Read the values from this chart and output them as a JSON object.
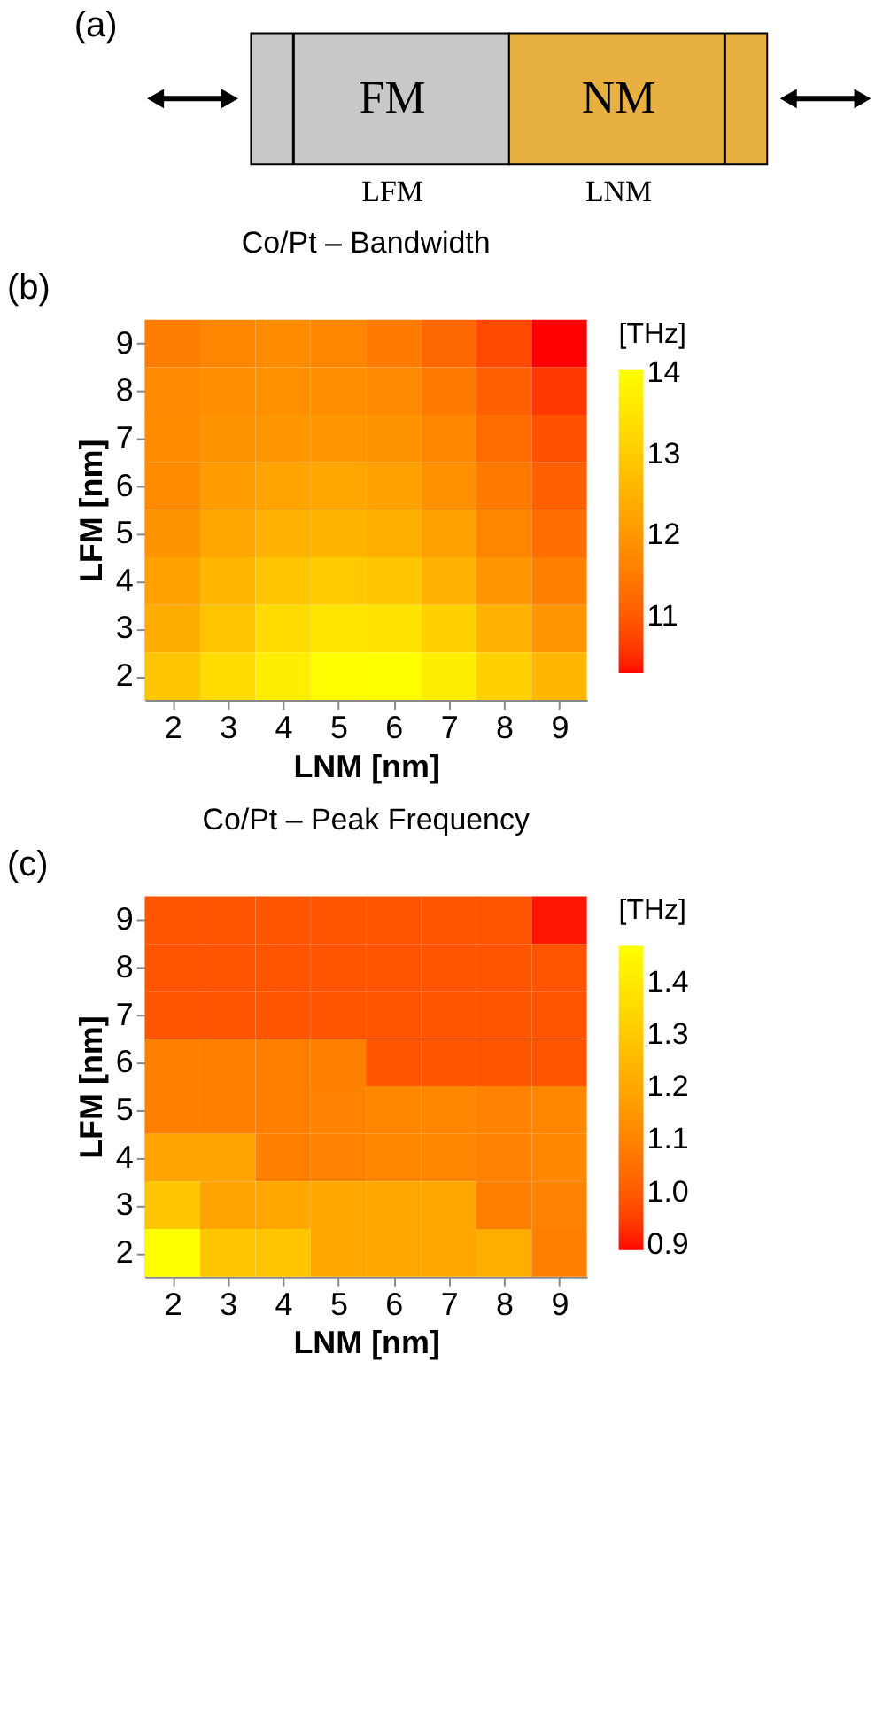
{
  "chart_data": [
    {
      "type": "other",
      "annotations": [
        "(a)",
        "FM",
        "NM",
        "LFM",
        "LNM"
      ]
    },
    {
      "type": "heatmap",
      "title": "Co/Pt – Bandwidth",
      "xlabel": "LNM [nm]",
      "ylabel": "LFM [nm]",
      "clabel": "[THz]",
      "annotations": [
        "(b)"
      ],
      "categories": [
        "2",
        "3",
        "4",
        "5",
        "6",
        "7",
        "8",
        "9"
      ],
      "y_categories": [
        "9",
        "8",
        "7",
        "6",
        "5",
        "4",
        "3",
        "2"
      ],
      "cells": [
        [
          11.55,
          11.7,
          11.8,
          11.7,
          11.5,
          11.2,
          10.8,
          10.3
        ],
        [
          11.75,
          11.85,
          11.9,
          11.85,
          11.75,
          11.5,
          11.1,
          10.6
        ],
        [
          11.8,
          11.95,
          12.0,
          12.0,
          11.95,
          11.7,
          11.3,
          10.9
        ],
        [
          11.8,
          12.1,
          12.25,
          12.3,
          12.2,
          11.9,
          11.5,
          11.1
        ],
        [
          11.95,
          12.3,
          12.5,
          12.55,
          12.45,
          12.15,
          11.7,
          11.3
        ],
        [
          12.2,
          12.6,
          12.9,
          13.0,
          12.9,
          12.5,
          12.0,
          11.6
        ],
        [
          12.4,
          12.85,
          13.3,
          13.5,
          13.45,
          13.1,
          12.5,
          12.0
        ],
        [
          12.9,
          13.3,
          13.7,
          14.0,
          14.05,
          13.7,
          13.1,
          12.6
        ]
      ],
      "clim": [
        10.3,
        14.05
      ],
      "cticks": [
        11,
        12,
        13,
        14
      ],
      "colors": [
        "#ff0000",
        "#ffff00"
      ]
    },
    {
      "type": "heatmap",
      "title": "Co/Pt – Peak Frequency",
      "xlabel": "LNM [nm]",
      "ylabel": "LFM [nm]",
      "clabel": "[THz]",
      "annotations": [
        "(c)"
      ],
      "categories": [
        "2",
        "3",
        "4",
        "5",
        "6",
        "7",
        "8",
        "9"
      ],
      "y_categories": [
        "9",
        "8",
        "7",
        "6",
        "5",
        "4",
        "3",
        "2"
      ],
      "cells": [
        [
          0.99,
          0.99,
          0.99,
          0.99,
          0.99,
          0.99,
          0.99,
          0.9
        ],
        [
          0.99,
          0.99,
          0.99,
          0.99,
          0.99,
          0.99,
          0.99,
          0.99
        ],
        [
          0.99,
          0.99,
          0.99,
          0.99,
          0.99,
          0.99,
          0.99,
          0.99
        ],
        [
          1.09,
          1.09,
          1.09,
          1.09,
          0.99,
          0.99,
          0.99,
          0.99
        ],
        [
          1.09,
          1.09,
          1.09,
          1.1,
          1.11,
          1.11,
          1.1,
          1.11
        ],
        [
          1.19,
          1.19,
          1.09,
          1.1,
          1.11,
          1.11,
          1.1,
          1.11
        ],
        [
          1.29,
          1.19,
          1.2,
          1.2,
          1.2,
          1.2,
          1.09,
          1.1
        ],
        [
          1.47,
          1.29,
          1.29,
          1.2,
          1.2,
          1.2,
          1.22,
          1.09
        ]
      ],
      "clim": [
        0.89,
        1.47
      ],
      "cticks": [
        {
          "value": 0.9,
          "label": "0.9"
        },
        {
          "value": 1.0,
          "label": "1.0"
        },
        {
          "value": 1.1,
          "label": "1.1"
        },
        {
          "value": 1.2,
          "label": "1.2"
        },
        {
          "value": 1.3,
          "label": "1.3"
        },
        {
          "value": 1.4,
          "label": "1.4"
        }
      ],
      "colors": [
        "#ff0000",
        "#ffff00"
      ]
    }
  ]
}
